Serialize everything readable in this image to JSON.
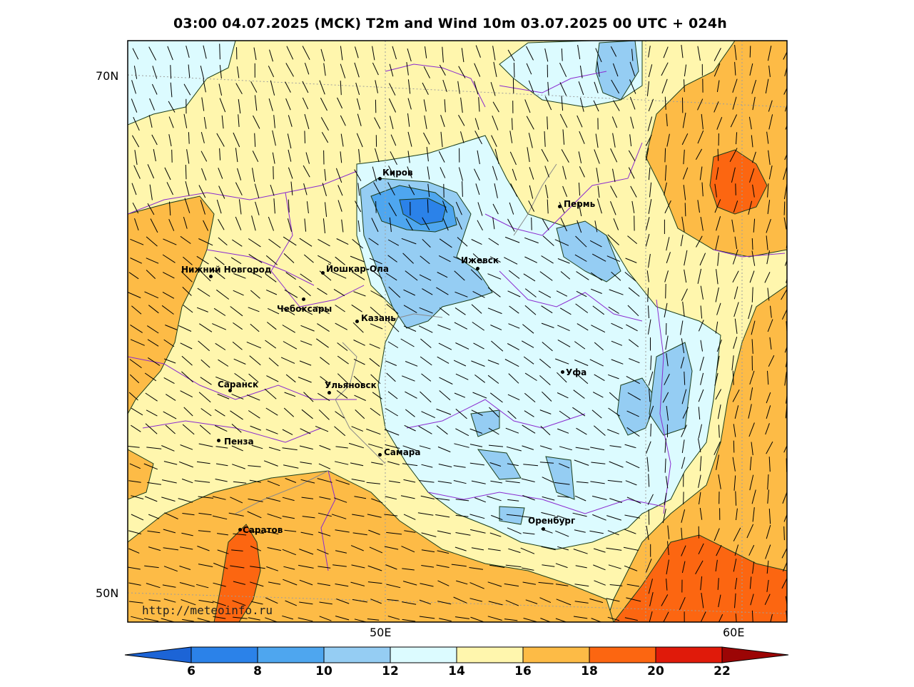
{
  "title": "03:00 04.07.2025 (MCK) T2m and Wind 10m 03.07.2025 00 UTC + 024h",
  "watermark": "http://meteoinfo.ru",
  "lat_labels": [
    "70N",
    "50N"
  ],
  "lon_labels": [
    "50E",
    "60E"
  ],
  "cities": [
    {
      "name": "Киров"
    },
    {
      "name": "Пермь"
    },
    {
      "name": "Нижний Новгород"
    },
    {
      "name": "Йошкар-Ола"
    },
    {
      "name": "Ижевск"
    },
    {
      "name": "Чебоксары"
    },
    {
      "name": "Казань"
    },
    {
      "name": "Уфа"
    },
    {
      "name": "Саранск"
    },
    {
      "name": "Ульяновск"
    },
    {
      "name": "Пенза"
    },
    {
      "name": "Самара"
    },
    {
      "name": "Оренбург"
    },
    {
      "name": "Саратов"
    }
  ],
  "colorbar": {
    "ticks": [
      "6",
      "8",
      "10",
      "12",
      "14",
      "16",
      "18",
      "20",
      "22"
    ],
    "colors": [
      "#1c64d6",
      "#2b82e9",
      "#4ea6ef",
      "#95cdf3",
      "#dcfbff",
      "#fff6ad",
      "#fdbb46",
      "#fc6611",
      "#e01a0a",
      "#9c0505"
    ]
  },
  "legend_colors": {
    "t12_14": "#dcfbff",
    "t14_16": "#fff6ad",
    "t16_18": "#fdbb46",
    "t18_20": "#fc6611",
    "t10_12": "#95cdf3",
    "t8_10": "#4ea6ef",
    "t6_8": "#2b82e9"
  }
}
